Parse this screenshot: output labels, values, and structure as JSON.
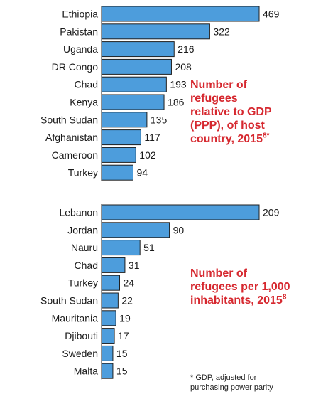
{
  "chart_data": [
    {
      "type": "bar",
      "orientation": "horizontal",
      "title": "Number of refugees relative to GDP (PPP), of host country, 2015",
      "title_lines": [
        "Number of",
        "refugees",
        "relative to GDP",
        "(PPP), of host",
        "country, 2015"
      ],
      "title_sup": "8*",
      "categories": [
        "Ethiopia",
        "Pakistan",
        "Uganda",
        "DR Congo",
        "Chad",
        "Kenya",
        "South Sudan",
        "Afghanistan",
        "Cameroon",
        "Turkey"
      ],
      "values": [
        469,
        322,
        216,
        208,
        193,
        186,
        135,
        117,
        102,
        94
      ],
      "xlim": [
        0,
        469
      ],
      "bar_color": "#4d9ddc",
      "title_color": "#d6282f"
    },
    {
      "type": "bar",
      "orientation": "horizontal",
      "title": "Number of refugees per 1,000 inhabitants, 2015",
      "title_lines": [
        "Number of",
        "refugees per 1,000",
        "inhabitants, 2015"
      ],
      "title_sup": "8",
      "categories": [
        "Lebanon",
        "Jordan",
        "Nauru",
        "Chad",
        "Turkey",
        "South Sudan",
        "Mauritania",
        "Djibouti",
        "Sweden",
        "Malta"
      ],
      "values": [
        209,
        90,
        51,
        31,
        24,
        22,
        19,
        17,
        15,
        15
      ],
      "xlim": [
        0,
        209
      ],
      "bar_color": "#4d9ddc",
      "title_color": "#d6282f"
    }
  ],
  "footnote_lines": [
    "* GDP, adjusted for",
    "purchasing power parity"
  ]
}
